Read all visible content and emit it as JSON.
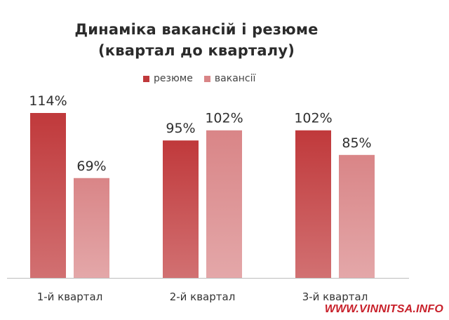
{
  "chart_data": {
    "type": "bar",
    "title": "Динаміка вакансій і резюме",
    "subtitle": "(квартал до кварталу)",
    "categories": [
      "1-й квартал",
      "2-й квартал",
      "3-й квартал"
    ],
    "series": [
      {
        "name": "резюме",
        "values": [
          114,
          95,
          102
        ],
        "labels": [
          "114%",
          "95%",
          "102%"
        ],
        "color": "#c0393b"
      },
      {
        "name": "вакансії",
        "values": [
          69,
          102,
          85
        ],
        "labels": [
          "69%",
          "102%",
          "85%"
        ],
        "color": "#d98587"
      }
    ],
    "xlabel": "",
    "ylabel": "",
    "ylim": [
      0,
      114
    ],
    "grid": false,
    "legend_position": "top"
  },
  "watermark": "WWW.VINNITSA.INFO"
}
